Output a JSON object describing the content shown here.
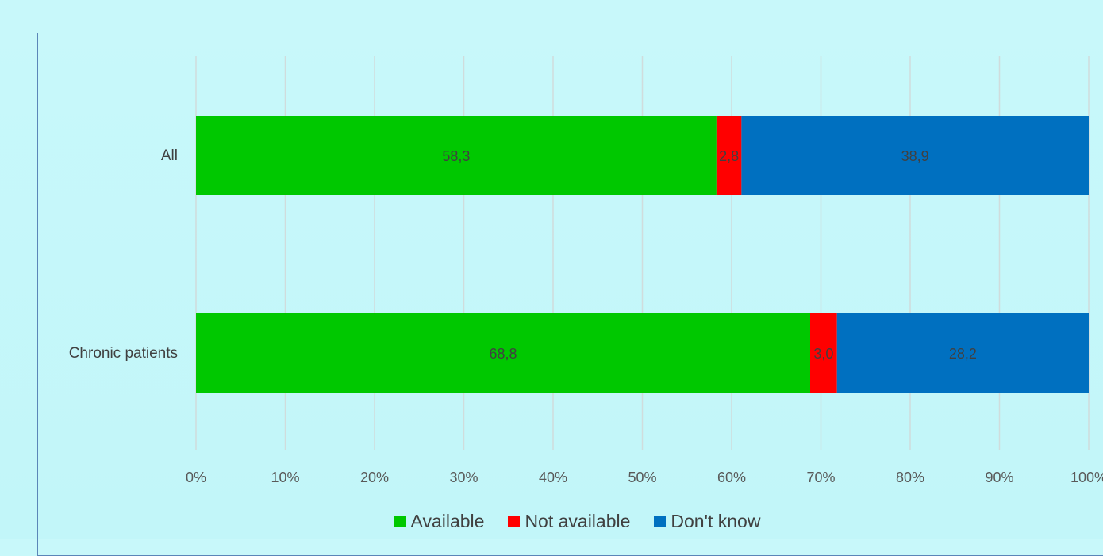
{
  "chart_data": {
    "type": "bar",
    "orientation": "horizontal",
    "stacked": "percent",
    "categories": [
      "All",
      "Chronic patients"
    ],
    "series": [
      {
        "name": "Available",
        "color": "#00c800",
        "values": [
          58.3,
          68.8
        ],
        "labels": [
          "58,3",
          "68,8"
        ]
      },
      {
        "name": "Not available",
        "color": "#ff0000",
        "values": [
          2.8,
          3.0
        ],
        "labels": [
          "2,8",
          "3,0"
        ]
      },
      {
        "name": "Don't know",
        "color": "#0070c0",
        "values": [
          38.9,
          28.2
        ],
        "labels": [
          "38,9",
          "28,2"
        ]
      }
    ],
    "xlim": [
      0,
      100
    ],
    "xticks": [
      "0%",
      "10%",
      "20%",
      "30%",
      "40%",
      "50%",
      "60%",
      "70%",
      "80%",
      "90%",
      "100%"
    ],
    "grid": true,
    "legend": "bottom"
  }
}
